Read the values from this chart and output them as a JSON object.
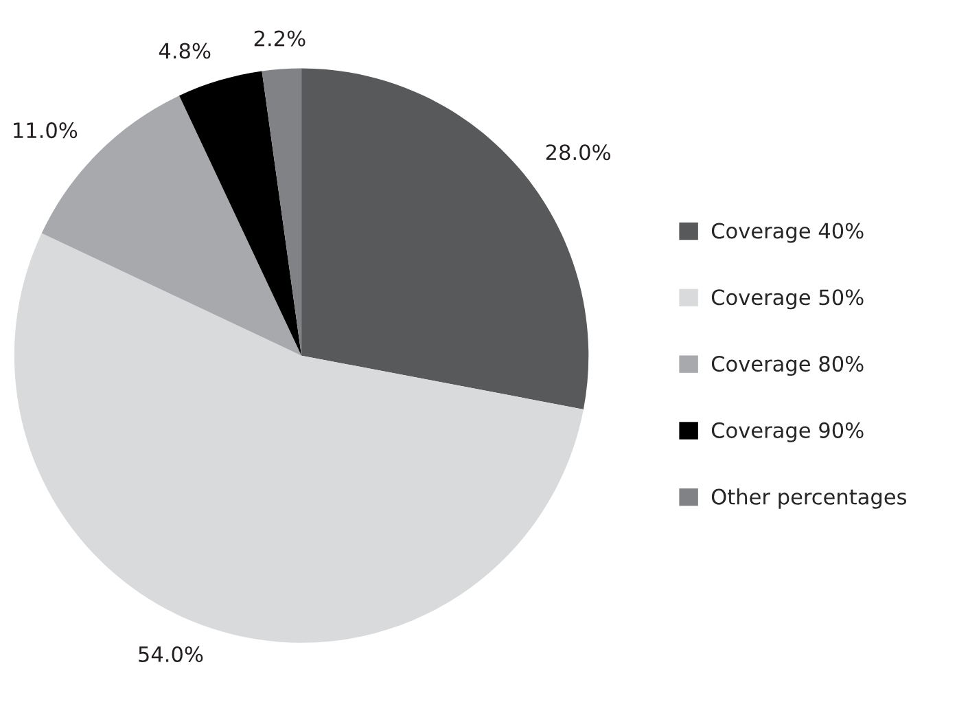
{
  "chart_data": {
    "type": "pie",
    "categories": [
      "Coverage 40%",
      "Coverage 50%",
      "Coverage 80%",
      "Coverage 90%",
      "Other percentages"
    ],
    "values": [
      28.0,
      54.0,
      11.0,
      4.8,
      2.2
    ],
    "value_labels": [
      "28.0%",
      "54.0%",
      "11.0%",
      "4.8%",
      "2.2%"
    ],
    "colors": [
      "#58595b",
      "#d9dadb",
      "#a7a9ac",
      "#000000",
      "#808285"
    ],
    "legend": "right"
  }
}
